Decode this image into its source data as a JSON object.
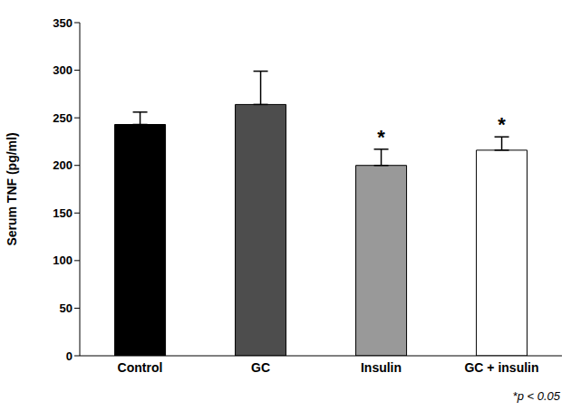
{
  "chart_data": {
    "type": "bar",
    "categories": [
      "Control",
      "GC",
      "Insulin",
      "GC + insulin"
    ],
    "values": [
      243,
      264,
      200,
      216
    ],
    "errors": [
      13,
      35,
      17,
      14
    ],
    "colors": [
      "#000000",
      "#4d4d4d",
      "#999999",
      "#ffffff"
    ],
    "significance": [
      null,
      null,
      "*",
      "*"
    ],
    "y_label": "Serum TNF (pg/ml)",
    "annotation": "*p < 0.05",
    "ylim": [
      0,
      350
    ],
    "yticks": [
      0,
      50,
      100,
      150,
      200,
      250,
      300,
      350
    ],
    "grid": false
  }
}
